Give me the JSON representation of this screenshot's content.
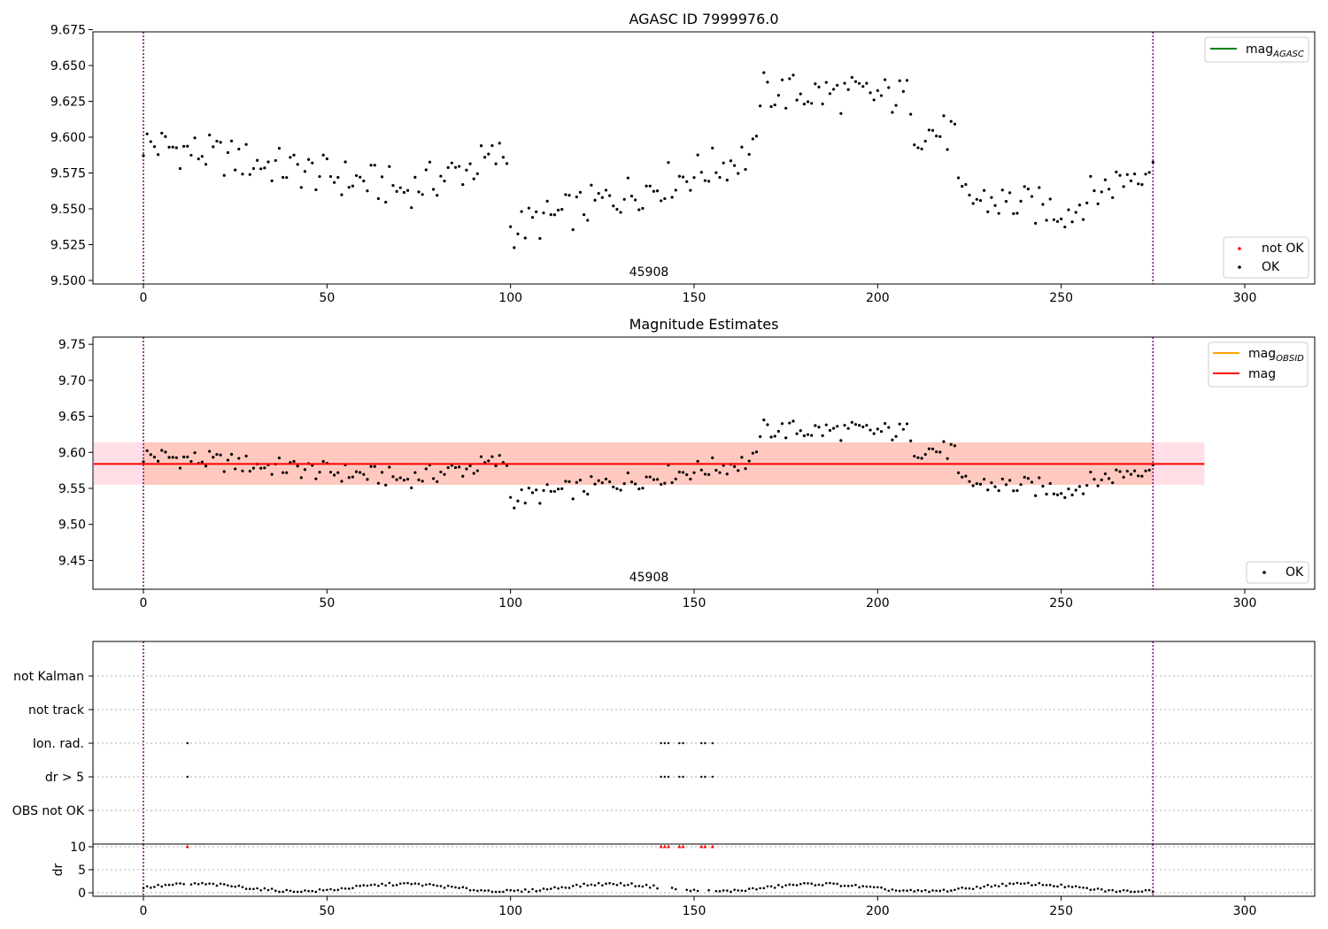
{
  "chart_data": [
    {
      "type": "scatter",
      "title": "AGASC ID 7999976.0",
      "xlabel": "",
      "ylabel": "",
      "xlim": [
        -14,
        319
      ],
      "ylim": [
        9.4975,
        9.6735
      ],
      "x_ticks": [
        0,
        50,
        100,
        150,
        200,
        250,
        300
      ],
      "y_ticks": [
        9.5,
        9.525,
        9.55,
        9.575,
        9.6,
        9.625,
        9.65,
        9.675
      ],
      "y_tick_labels": [
        "9.500",
        "9.525",
        "9.550",
        "9.575",
        "9.600",
        "9.625",
        "9.650",
        "9.675"
      ],
      "vlines": [
        0,
        275
      ],
      "obsid_label": "45908",
      "obsid_label_x": 137.5,
      "legend_upper": [
        {
          "label": "mag",
          "sub": "AGASC",
          "color": "#008000",
          "marker": "line"
        }
      ],
      "legend_lower": [
        {
          "label": "not OK",
          "color": "#ff0000",
          "marker": "dot"
        },
        {
          "label": "OK",
          "color": "#000000",
          "marker": "dot"
        }
      ],
      "series": [
        {
          "name": "OK",
          "color": "#000000"
        }
      ]
    },
    {
      "type": "scatter",
      "title": "Magnitude Estimates",
      "xlabel": "",
      "ylabel": "",
      "xlim": [
        -14,
        319
      ],
      "ylim": [
        9.41,
        9.76
      ],
      "x_ticks": [
        0,
        50,
        100,
        150,
        200,
        250,
        300
      ],
      "y_ticks": [
        9.45,
        9.5,
        9.55,
        9.6,
        9.65,
        9.7,
        9.75
      ],
      "y_tick_labels": [
        "9.45",
        "9.50",
        "9.55",
        "9.60",
        "9.65",
        "9.70",
        "9.75"
      ],
      "vlines": [
        0,
        275
      ],
      "obsid_label": "45908",
      "obsid_label_x": 137.5,
      "mag_mean": 9.584,
      "band_obsid": [
        0,
        275,
        9.555,
        9.614
      ],
      "band_mag": [
        -14,
        289,
        9.555,
        9.614
      ],
      "legend_upper": [
        {
          "label": "mag",
          "sub": "OBSID",
          "color": "#ffa500",
          "marker": "line"
        },
        {
          "label": "mag",
          "sub": "",
          "color": "#ff0000",
          "marker": "line"
        }
      ],
      "legend_lower": [
        {
          "label": "OK",
          "color": "#000000",
          "marker": "dot"
        }
      ],
      "series": [
        {
          "name": "OK",
          "color": "#000000"
        }
      ]
    },
    {
      "type": "scatter",
      "title": "",
      "categories": [
        "not Kalman",
        "not track",
        "Ion. rad.",
        "dr > 5",
        "OBS not OK"
      ],
      "flag_times": {
        "not Kalman": [],
        "not track": [],
        "Ion. rad.": [
          12,
          141,
          142,
          143,
          146,
          147,
          152,
          153,
          155
        ],
        "dr > 5": [
          12,
          141,
          142,
          143,
          146,
          147,
          152,
          153,
          155
        ],
        "OBS not OK": []
      },
      "vlines": [
        0,
        275
      ],
      "xlim": [
        -14,
        319
      ]
    },
    {
      "type": "scatter",
      "title": "",
      "xlabel": "",
      "ylabel": "dr",
      "xlim": [
        -14,
        319
      ],
      "ylim": [
        -0.5,
        10.5
      ],
      "x_ticks": [
        0,
        50,
        100,
        150,
        200,
        250,
        300
      ],
      "y_ticks": [
        0,
        5,
        10
      ],
      "y_tick_labels": [
        "0",
        "5",
        "10"
      ],
      "vlines": [
        0,
        275
      ],
      "clipped_points": [
        12,
        141,
        142,
        143,
        146,
        147,
        152,
        153,
        155
      ],
      "clipped_color": "#ff0000"
    }
  ]
}
